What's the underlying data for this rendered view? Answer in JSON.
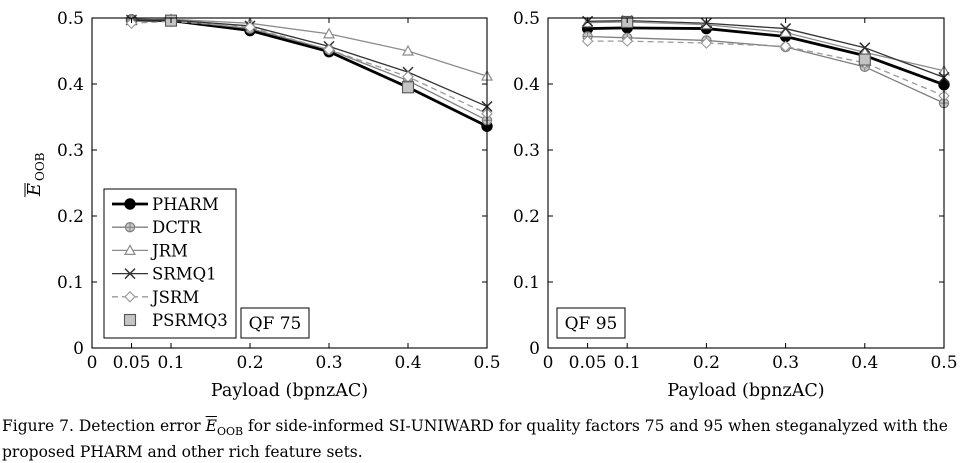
{
  "chart_data": [
    {
      "type": "line",
      "panel_label": "QF 75",
      "xlabel": "Payload (bpnzAC)",
      "ylabel": "E",
      "ylabel_subscript": "OOB",
      "xlim": [
        0,
        0.5
      ],
      "ylim": [
        0,
        0.5
      ],
      "xticks": [
        0,
        0.05,
        0.1,
        0.2,
        0.3,
        0.4,
        0.5
      ],
      "xtick_labels": [
        "0",
        "0.05",
        "0.1",
        "0.2",
        "0.3",
        "0.4",
        "0.5"
      ],
      "yticks": [
        0,
        0.1,
        0.2,
        0.3,
        0.4,
        0.5
      ],
      "ytick_labels": [
        "0",
        "0.1",
        "0.2",
        "0.3",
        "0.4",
        "0.5"
      ],
      "grid": false,
      "legend_position": "bottom-left",
      "x": [
        0.05,
        0.1,
        0.2,
        0.3,
        0.4,
        0.5
      ],
      "series": [
        {
          "name": "PHARM",
          "values": [
            0.497,
            0.496,
            0.481,
            0.449,
            0.395,
            0.336
          ]
        },
        {
          "name": "DCTR",
          "values": [
            0.497,
            0.497,
            0.484,
            0.452,
            0.405,
            0.345
          ]
        },
        {
          "name": "JRM",
          "values": [
            0.497,
            0.498,
            0.492,
            0.476,
            0.45,
            0.412
          ]
        },
        {
          "name": "SRMQ1",
          "values": [
            0.497,
            0.497,
            0.488,
            0.457,
            0.418,
            0.366
          ]
        },
        {
          "name": "JSRM",
          "values": [
            0.492,
            0.495,
            0.486,
            0.452,
            0.411,
            0.355
          ]
        },
        {
          "name": "PSRMQ3",
          "values": [
            null,
            0.496,
            null,
            null,
            0.395,
            null
          ]
        }
      ]
    },
    {
      "type": "line",
      "panel_label": "QF 95",
      "xlabel": "Payload (bpnzAC)",
      "xlim": [
        0,
        0.5
      ],
      "ylim": [
        0,
        0.5
      ],
      "xticks": [
        0,
        0.05,
        0.1,
        0.2,
        0.3,
        0.4,
        0.5
      ],
      "xtick_labels": [
        "0",
        "0.05",
        "0.1",
        "0.2",
        "0.3",
        "0.4",
        "0.5"
      ],
      "yticks": [
        0,
        0.1,
        0.2,
        0.3,
        0.4,
        0.5
      ],
      "ytick_labels": [
        "0",
        "0.1",
        "0.2",
        "0.3",
        "0.4",
        "0.5"
      ],
      "grid": false,
      "x": [
        0.05,
        0.1,
        0.2,
        0.3,
        0.4,
        0.5
      ],
      "series": [
        {
          "name": "PHARM",
          "values": [
            0.484,
            0.485,
            0.484,
            0.472,
            0.443,
            0.399
          ]
        },
        {
          "name": "DCTR",
          "values": [
            0.472,
            0.47,
            0.466,
            0.456,
            0.426,
            0.371
          ]
        },
        {
          "name": "JRM",
          "values": [
            0.493,
            0.494,
            0.49,
            0.478,
            0.448,
            0.42
          ]
        },
        {
          "name": "SRMQ1",
          "values": [
            0.495,
            0.496,
            0.492,
            0.484,
            0.455,
            0.41
          ]
        },
        {
          "name": "JSRM",
          "values": [
            0.465,
            0.465,
            0.462,
            0.457,
            0.432,
            0.382
          ]
        },
        {
          "name": "PSRMQ3",
          "values": [
            null,
            0.494,
            null,
            null,
            0.437,
            null
          ]
        }
      ]
    }
  ],
  "legend": [
    "PHARM",
    "DCTR",
    "JRM",
    "SRMQ1",
    "JSRM",
    "PSRMQ3"
  ],
  "series_styles": {
    "PHARM": {
      "color": "#000000",
      "marker": "filled-circle",
      "dash": "solid",
      "weight": "thick"
    },
    "DCTR": {
      "color": "#7f7f7f",
      "marker": "circle-plus",
      "dash": "solid",
      "weight": "normal"
    },
    "JRM": {
      "color": "#8c8c8c",
      "marker": "triangle",
      "dash": "solid",
      "weight": "normal"
    },
    "SRMQ1": {
      "color": "#333333",
      "marker": "cross",
      "dash": "solid",
      "weight": "normal"
    },
    "JSRM": {
      "color": "#9a9a9a",
      "marker": "diamond",
      "dash": "dashed",
      "weight": "normal"
    },
    "PSRMQ3": {
      "color": "#7a7a7a",
      "marker": "square",
      "dash": "none",
      "weight": "normal"
    }
  },
  "caption": {
    "prefix": "Figure 7. Detection error ",
    "symbol": "E",
    "symbol_subscript": "OOB",
    "line1": " for side-informed SI-UNIWARD for quality factors 75 and 95 when steganalyzed with the",
    "line2": "proposed PHARM and other rich feature sets."
  }
}
